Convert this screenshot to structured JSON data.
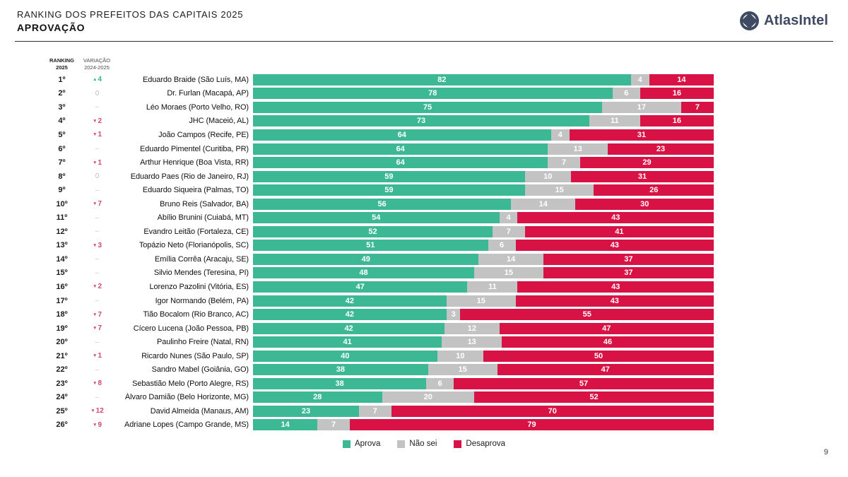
{
  "header": {
    "title_line1": "RANKING DOS PREFEITOS DAS CAPITAIS 2025",
    "title_line2": "APROVAÇÃO",
    "brand": "AtlasIntel"
  },
  "columns": {
    "ranking_line1": "RANKING",
    "ranking_line2": "2025",
    "variation_line1": "VARIAÇÃO",
    "variation_line2": "2024-2025"
  },
  "legend": {
    "aprova": "Aprova",
    "nao_sei": "Não sei",
    "desaprova": "Desaprova"
  },
  "page_number": "9",
  "colors": {
    "aprova_green": "#3CB894",
    "nao_sei_gray": "#C3C3C3",
    "desaprova_red": "#D81244",
    "variation_up": "#2FB28D",
    "variation_down": "#D0496C",
    "variation_neutral": "#BDBDBD",
    "brand_navy": "#3E4A61"
  },
  "chart_data": {
    "type": "bar",
    "orientation": "horizontal",
    "stacked": true,
    "title": "RANKING DOS PREFEITOS DAS CAPITAIS 2025 — APROVAÇÃO",
    "x_range": [
      0,
      100
    ],
    "legend_position": "bottom",
    "series_names": [
      "Aprova",
      "Não sei",
      "Desaprova"
    ],
    "rows": [
      {
        "rank": "1º",
        "variation": {
          "arrow": "▲",
          "value": "4",
          "dir": "up"
        },
        "name": "Eduardo Braide (São Luís, MA)",
        "values": [
          82,
          4,
          14
        ]
      },
      {
        "rank": "2º",
        "variation": {
          "arrow": "",
          "value": "0",
          "dir": "zero"
        },
        "name": "Dr. Furlan (Macapá, AP)",
        "values": [
          78,
          6,
          16
        ]
      },
      {
        "rank": "3º",
        "variation": {
          "arrow": "",
          "value": "–",
          "dir": "none"
        },
        "name": "Léo Moraes (Porto Velho, RO)",
        "values": [
          75,
          17,
          7
        ]
      },
      {
        "rank": "4º",
        "variation": {
          "arrow": "▼",
          "value": "2",
          "dir": "down"
        },
        "name": "JHC (Maceió, AL)",
        "values": [
          73,
          11,
          16
        ]
      },
      {
        "rank": "5º",
        "variation": {
          "arrow": "▼",
          "value": "1",
          "dir": "down"
        },
        "name": "João Campos (Recife, PE)",
        "values": [
          64,
          4,
          31
        ]
      },
      {
        "rank": "6º",
        "variation": {
          "arrow": "",
          "value": "–",
          "dir": "none"
        },
        "name": "Eduardo Pimentel (Curitiba, PR)",
        "values": [
          64,
          13,
          23
        ]
      },
      {
        "rank": "7º",
        "variation": {
          "arrow": "▼",
          "value": "1",
          "dir": "down"
        },
        "name": "Arthur Henrique (Boa Vista, RR)",
        "values": [
          64,
          7,
          29
        ]
      },
      {
        "rank": "8º",
        "variation": {
          "arrow": "",
          "value": "0",
          "dir": "zero"
        },
        "name": "Eduardo Paes (Rio de Janeiro, RJ)",
        "values": [
          59,
          10,
          31
        ]
      },
      {
        "rank": "9º",
        "variation": {
          "arrow": "",
          "value": "–",
          "dir": "none"
        },
        "name": "Eduardo Siqueira (Palmas, TO)",
        "values": [
          59,
          15,
          26
        ]
      },
      {
        "rank": "10º",
        "variation": {
          "arrow": "▼",
          "value": "7",
          "dir": "down"
        },
        "name": "Bruno Reis (Salvador, BA)",
        "values": [
          56,
          14,
          30
        ]
      },
      {
        "rank": "11º",
        "variation": {
          "arrow": "",
          "value": "–",
          "dir": "none"
        },
        "name": "Abílio Brunini (Cuiabá, MT)",
        "values": [
          54,
          4,
          43
        ]
      },
      {
        "rank": "12º",
        "variation": {
          "arrow": "",
          "value": "–",
          "dir": "none"
        },
        "name": "Evandro Leitão (Fortaleza, CE)",
        "values": [
          52,
          7,
          41
        ]
      },
      {
        "rank": "13º",
        "variation": {
          "arrow": "▼",
          "value": "3",
          "dir": "down"
        },
        "name": "Topázio Neto (Florianópolis, SC)",
        "values": [
          51,
          6,
          43
        ]
      },
      {
        "rank": "14º",
        "variation": {
          "arrow": "",
          "value": "–",
          "dir": "none"
        },
        "name": "Emília Corrêa (Aracaju, SE)",
        "values": [
          49,
          14,
          37
        ]
      },
      {
        "rank": "15º",
        "variation": {
          "arrow": "",
          "value": "–",
          "dir": "none"
        },
        "name": "Silvio Mendes (Teresina, PI)",
        "values": [
          48,
          15,
          37
        ]
      },
      {
        "rank": "16º",
        "variation": {
          "arrow": "▼",
          "value": "2",
          "dir": "down"
        },
        "name": "Lorenzo Pazolini (Vitória, ES)",
        "values": [
          47,
          11,
          43
        ]
      },
      {
        "rank": "17º",
        "variation": {
          "arrow": "",
          "value": "–",
          "dir": "none"
        },
        "name": "Igor Normando (Belém, PA)",
        "values": [
          42,
          15,
          43
        ]
      },
      {
        "rank": "18º",
        "variation": {
          "arrow": "▼",
          "value": "7",
          "dir": "down"
        },
        "name": "Tião Bocalom (Rio Branco, AC)",
        "values": [
          42,
          3,
          55
        ]
      },
      {
        "rank": "19º",
        "variation": {
          "arrow": "▼",
          "value": "7",
          "dir": "down"
        },
        "name": "Cícero Lucena (João Pessoa, PB)",
        "values": [
          42,
          12,
          47
        ]
      },
      {
        "rank": "20º",
        "variation": {
          "arrow": "",
          "value": "–",
          "dir": "none"
        },
        "name": "Paulinho Freire (Natal, RN)",
        "values": [
          41,
          13,
          46
        ]
      },
      {
        "rank": "21º",
        "variation": {
          "arrow": "▼",
          "value": "1",
          "dir": "down"
        },
        "name": "Ricardo Nunes (São Paulo, SP)",
        "values": [
          40,
          10,
          50
        ]
      },
      {
        "rank": "22º",
        "variation": {
          "arrow": "",
          "value": "–",
          "dir": "none"
        },
        "name": "Sandro Mabel (Goiânia, GO)",
        "values": [
          38,
          15,
          47
        ]
      },
      {
        "rank": "23º",
        "variation": {
          "arrow": "▼",
          "value": "8",
          "dir": "down"
        },
        "name": "Sebastião Melo (Porto Alegre, RS)",
        "values": [
          38,
          6,
          57
        ]
      },
      {
        "rank": "24º",
        "variation": {
          "arrow": "",
          "value": "–",
          "dir": "none"
        },
        "name": "Álvaro Damião (Belo Horizonte, MG)",
        "values": [
          28,
          20,
          52
        ]
      },
      {
        "rank": "25º",
        "variation": {
          "arrow": "▼",
          "value": "12",
          "dir": "down"
        },
        "name": "David Almeida (Manaus, AM)",
        "values": [
          23,
          7,
          70
        ]
      },
      {
        "rank": "26º",
        "variation": {
          "arrow": "▼",
          "value": "9",
          "dir": "down"
        },
        "name": "Adriane Lopes (Campo Grande, MS)",
        "values": [
          14,
          7,
          79
        ]
      }
    ]
  }
}
